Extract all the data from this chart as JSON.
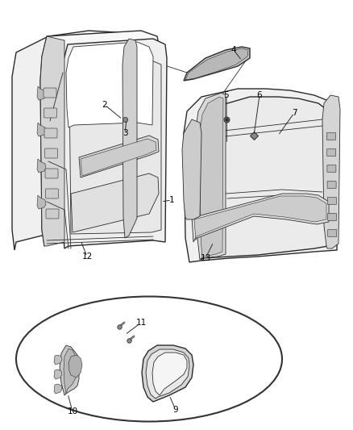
{
  "bg_color": "#ffffff",
  "line_color": "#2a2a2a",
  "label_color": "#000000",
  "label_fontsize": 7.5,
  "fig_w": 4.38,
  "fig_h": 5.33,
  "dpi": 100
}
